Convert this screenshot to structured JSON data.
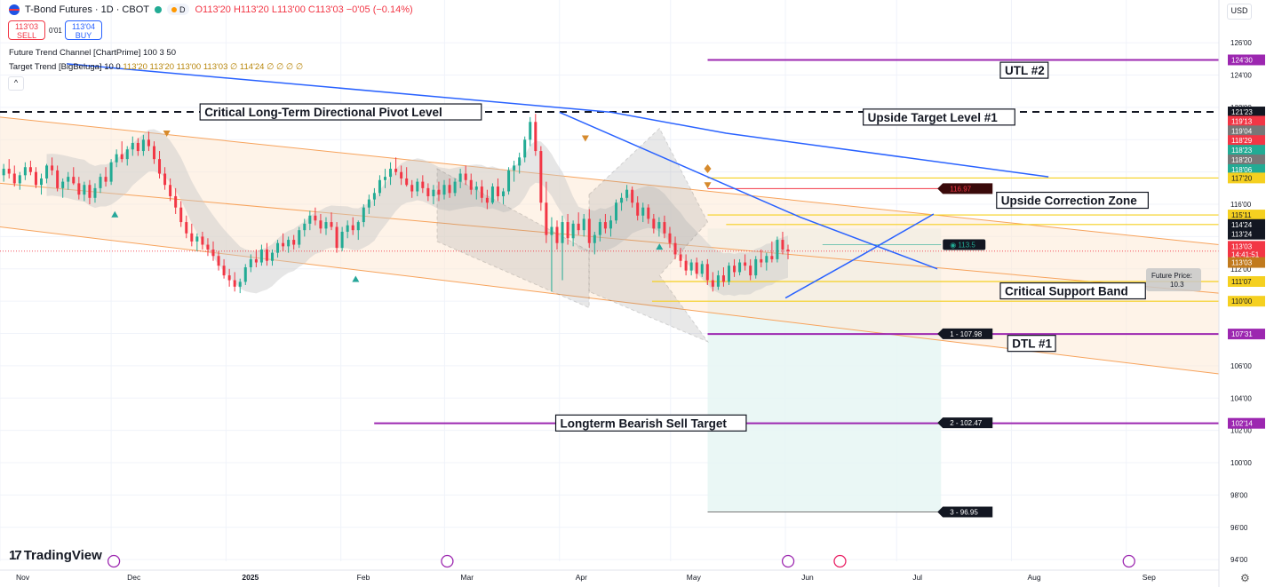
{
  "header": {
    "title": "T-Bond Futures · 1D · CBOT",
    "mode_badge": "D",
    "ohlc": "O113'20 H113'20 L113'00 C113'03 −0'05 (−0.14%)",
    "sell_price": "113'03",
    "sell_label": "SELL",
    "spread": "0'01",
    "buy_price": "113'04",
    "buy_label": "BUY",
    "indicator1": "Future Trend Channel [ChartPrime] 100 3 50",
    "indicator2_name": "Target Trend [BigBeluga] 10 0",
    "indicator2_values": "113'20  113'20  113'00  113'03  ∅  114'24  ∅  ∅  ∅  ∅",
    "currency": "USD",
    "collapse": "^"
  },
  "branding": {
    "logo": "TradingView",
    "logo_mark": "17"
  },
  "colors": {
    "bull": "#22ab94",
    "bear": "#f23645",
    "trend_blue": "#2962ff",
    "purple": "#9c27b0",
    "yellow": "#f5d020",
    "channel": "#f7a35c",
    "cloud": "#c8c8c8",
    "teal_zone": "#e6f6f3"
  },
  "chart_data": {
    "type": "candlestick",
    "xlabel": "",
    "ylabel": "",
    "y_range": [
      93.9,
      127.0
    ],
    "y_ticks": [
      "126'00",
      "124'00",
      "122'00",
      "120'00",
      "118'00",
      "116'00",
      "114'00",
      "112'00",
      "110'00",
      "108'00",
      "106'00",
      "104'00",
      "102'00",
      "100'00",
      "98'00",
      "96'00",
      "94'00"
    ],
    "y_tick_values": [
      126,
      124,
      122,
      120,
      118,
      116,
      114,
      112,
      110,
      108,
      106,
      104,
      102,
      100,
      98,
      96,
      94
    ],
    "x_range": [
      0,
      329
    ],
    "x_ticks": [
      {
        "label": "Nov",
        "x": 0
      },
      {
        "label": "Dec",
        "x": 30
      },
      {
        "label": "2025",
        "x": 61
      },
      {
        "label": "Feb",
        "x": 92
      },
      {
        "label": "Mar",
        "x": 120
      },
      {
        "label": "Apr",
        "x": 151
      },
      {
        "label": "May",
        "x": 181
      },
      {
        "label": "Jun",
        "x": 212
      },
      {
        "label": "Jul",
        "x": 242
      },
      {
        "label": "Aug",
        "x": 273
      },
      {
        "label": "Sep",
        "x": 304
      }
    ],
    "candles_start_x": 1,
    "candles_step": 1.45,
    "ohlc": [
      [
        117.8,
        118.5,
        117.4,
        118.2
      ],
      [
        118.2,
        118.8,
        117.6,
        117.9
      ],
      [
        117.9,
        118.4,
        117.1,
        117.3
      ],
      [
        117.3,
        118.0,
        116.9,
        117.8
      ],
      [
        117.8,
        118.6,
        117.5,
        118.3
      ],
      [
        118.3,
        118.7,
        117.8,
        118.0
      ],
      [
        118.0,
        118.3,
        117.0,
        117.2
      ],
      [
        117.2,
        117.9,
        116.6,
        117.6
      ],
      [
        117.6,
        118.5,
        117.3,
        118.4
      ],
      [
        118.4,
        118.9,
        117.8,
        118.1
      ],
      [
        118.1,
        118.4,
        116.8,
        117.0
      ],
      [
        117.0,
        117.6,
        116.4,
        117.4
      ],
      [
        117.4,
        118.0,
        116.9,
        117.7
      ],
      [
        117.7,
        118.3,
        117.2,
        117.3
      ],
      [
        117.3,
        117.7,
        116.3,
        116.6
      ],
      [
        116.6,
        117.4,
        116.2,
        117.2
      ],
      [
        117.2,
        117.5,
        116.0,
        116.4
      ],
      [
        116.4,
        117.3,
        116.1,
        117.0
      ],
      [
        117.0,
        117.9,
        116.7,
        117.7
      ],
      [
        117.7,
        118.3,
        117.1,
        117.4
      ],
      [
        117.4,
        118.8,
        117.2,
        118.6
      ],
      [
        118.6,
        119.4,
        118.3,
        119.1
      ],
      [
        119.1,
        119.9,
        118.6,
        118.8
      ],
      [
        118.8,
        119.6,
        118.4,
        119.4
      ],
      [
        119.4,
        120.2,
        119.0,
        119.8
      ],
      [
        119.8,
        120.1,
        119.0,
        119.3
      ],
      [
        119.3,
        120.3,
        119.0,
        120.0
      ],
      [
        120.0,
        120.5,
        119.3,
        119.6
      ],
      [
        119.6,
        119.9,
        118.5,
        118.8
      ],
      [
        118.8,
        119.3,
        117.6,
        117.9
      ],
      [
        117.9,
        118.3,
        116.9,
        117.2
      ],
      [
        117.2,
        117.6,
        116.2,
        116.5
      ],
      [
        116.5,
        117.0,
        115.4,
        115.8
      ],
      [
        115.8,
        116.2,
        114.6,
        114.9
      ],
      [
        114.9,
        115.3,
        113.9,
        114.2
      ],
      [
        114.2,
        114.8,
        113.4,
        113.7
      ],
      [
        113.7,
        114.2,
        113.1,
        114.0
      ],
      [
        114.0,
        114.3,
        113.2,
        113.5
      ],
      [
        113.5,
        113.9,
        112.8,
        113.2
      ],
      [
        113.2,
        113.7,
        112.5,
        112.8
      ],
      [
        112.8,
        113.1,
        111.9,
        112.2
      ],
      [
        112.2,
        112.6,
        111.4,
        111.6
      ],
      [
        111.6,
        112.0,
        110.9,
        111.3
      ],
      [
        111.3,
        111.8,
        110.6,
        110.9
      ],
      [
        110.9,
        111.4,
        110.5,
        111.2
      ],
      [
        111.2,
        112.3,
        111.0,
        112.1
      ],
      [
        112.1,
        112.9,
        111.8,
        112.6
      ],
      [
        112.6,
        113.2,
        112.1,
        112.4
      ],
      [
        112.4,
        113.5,
        112.2,
        113.2
      ],
      [
        113.2,
        113.6,
        112.2,
        112.5
      ],
      [
        112.5,
        113.2,
        112.2,
        113.0
      ],
      [
        113.0,
        113.8,
        112.7,
        113.6
      ],
      [
        113.6,
        114.2,
        113.1,
        113.4
      ],
      [
        113.4,
        114.0,
        113.0,
        113.8
      ],
      [
        113.8,
        114.1,
        113.2,
        113.5
      ],
      [
        113.5,
        114.6,
        113.3,
        114.4
      ],
      [
        114.4,
        115.1,
        114.0,
        114.8
      ],
      [
        114.8,
        115.6,
        114.4,
        115.3
      ],
      [
        115.3,
        115.8,
        114.7,
        115.0
      ],
      [
        115.0,
        115.4,
        114.2,
        114.5
      ],
      [
        114.5,
        115.2,
        114.1,
        114.9
      ],
      [
        114.9,
        115.5,
        114.4,
        114.6
      ],
      [
        114.6,
        114.9,
        113.0,
        113.3
      ],
      [
        113.3,
        114.6,
        113.1,
        114.3
      ],
      [
        114.3,
        115.0,
        113.9,
        114.7
      ],
      [
        114.7,
        115.2,
        114.1,
        114.4
      ],
      [
        114.4,
        115.0,
        113.8,
        114.9
      ],
      [
        114.9,
        116.0,
        114.6,
        115.8
      ],
      [
        115.8,
        116.6,
        115.4,
        116.3
      ],
      [
        116.3,
        117.0,
        115.9,
        116.7
      ],
      [
        116.7,
        117.8,
        116.5,
        117.5
      ],
      [
        117.5,
        118.2,
        117.0,
        117.7
      ],
      [
        117.7,
        118.6,
        117.2,
        118.2
      ],
      [
        118.2,
        118.9,
        117.8,
        118.0
      ],
      [
        118.0,
        118.4,
        117.2,
        117.6
      ],
      [
        117.6,
        118.3,
        117.1,
        117.2
      ],
      [
        117.2,
        117.5,
        116.4,
        116.8
      ],
      [
        116.8,
        117.6,
        116.5,
        117.4
      ],
      [
        117.4,
        117.8,
        116.7,
        117.0
      ],
      [
        117.0,
        117.3,
        116.2,
        116.5
      ],
      [
        116.5,
        117.2,
        116.0,
        116.9
      ],
      [
        116.9,
        117.4,
        116.2,
        116.6
      ],
      [
        116.6,
        117.5,
        116.3,
        117.2
      ],
      [
        117.2,
        117.6,
        116.4,
        116.7
      ],
      [
        116.7,
        117.6,
        116.5,
        117.4
      ],
      [
        117.4,
        118.2,
        117.0,
        117.9
      ],
      [
        117.9,
        118.4,
        117.2,
        117.5
      ],
      [
        117.5,
        117.9,
        116.6,
        116.9
      ],
      [
        116.9,
        117.4,
        116.3,
        117.1
      ],
      [
        117.1,
        117.5,
        116.1,
        116.4
      ],
      [
        116.4,
        116.9,
        115.7,
        116.1
      ],
      [
        116.1,
        117.3,
        116.0,
        117.1
      ],
      [
        117.1,
        117.6,
        116.2,
        116.5
      ],
      [
        116.5,
        117.0,
        116.0,
        116.8
      ],
      [
        116.8,
        118.3,
        116.6,
        118.1
      ],
      [
        118.1,
        118.7,
        117.4,
        118.4
      ],
      [
        118.4,
        119.2,
        117.9,
        118.9
      ],
      [
        118.9,
        120.2,
        118.6,
        120.0
      ],
      [
        120.0,
        121.4,
        119.6,
        121.1
      ],
      [
        121.1,
        121.6,
        119.0,
        119.3
      ],
      [
        119.3,
        119.6,
        115.6,
        116.1
      ],
      [
        116.1,
        117.4,
        113.6,
        114.1
      ],
      [
        114.1,
        115.2,
        110.6,
        114.6
      ],
      [
        114.6,
        115.0,
        113.2,
        113.6
      ],
      [
        113.6,
        115.3,
        111.3,
        114.9
      ],
      [
        114.9,
        115.4,
        113.5,
        113.9
      ],
      [
        113.9,
        115.0,
        113.4,
        114.8
      ],
      [
        114.8,
        115.5,
        114.1,
        114.4
      ],
      [
        114.4,
        115.4,
        114.0,
        115.1
      ],
      [
        115.1,
        115.7,
        113.3,
        113.6
      ],
      [
        113.6,
        114.3,
        112.9,
        114.1
      ],
      [
        114.1,
        115.1,
        113.7,
        114.9
      ],
      [
        114.9,
        115.4,
        114.2,
        114.5
      ],
      [
        114.5,
        115.3,
        114.0,
        115.0
      ],
      [
        115.0,
        116.3,
        114.8,
        116.1
      ],
      [
        116.1,
        116.7,
        115.6,
        116.4
      ],
      [
        116.4,
        117.2,
        116.2,
        116.9
      ],
      [
        116.9,
        117.1,
        115.8,
        116.1
      ],
      [
        116.1,
        116.5,
        115.0,
        115.3
      ],
      [
        115.3,
        116.1,
        114.9,
        115.8
      ],
      [
        115.8,
        116.0,
        114.8,
        115.1
      ],
      [
        115.1,
        115.4,
        114.2,
        114.5
      ],
      [
        114.5,
        115.2,
        114.0,
        114.9
      ],
      [
        114.9,
        115.3,
        113.9,
        114.2
      ],
      [
        114.2,
        114.6,
        113.3,
        113.6
      ],
      [
        113.6,
        114.0,
        112.6,
        112.9
      ],
      [
        112.9,
        113.3,
        112.1,
        112.5
      ],
      [
        112.5,
        112.9,
        111.6,
        111.9
      ],
      [
        111.9,
        112.6,
        111.6,
        112.4
      ],
      [
        112.4,
        112.7,
        111.4,
        111.7
      ],
      [
        111.7,
        112.5,
        111.5,
        112.3
      ],
      [
        112.3,
        112.6,
        111.0,
        111.3
      ],
      [
        111.3,
        111.8,
        110.6,
        110.9
      ],
      [
        110.9,
        111.9,
        110.7,
        111.6
      ],
      [
        111.6,
        112.1,
        110.9,
        111.2
      ],
      [
        111.2,
        112.4,
        111.0,
        112.2
      ],
      [
        112.2,
        112.6,
        111.5,
        111.8
      ],
      [
        111.8,
        112.6,
        111.6,
        112.4
      ],
      [
        112.4,
        112.9,
        111.9,
        112.2
      ],
      [
        112.2,
        112.6,
        111.3,
        111.6
      ],
      [
        111.6,
        112.8,
        111.4,
        112.6
      ],
      [
        112.6,
        113.2,
        112.1,
        112.4
      ],
      [
        112.4,
        113.0,
        111.9,
        112.8
      ],
      [
        112.8,
        113.7,
        112.4,
        112.6
      ],
      [
        112.6,
        114.0,
        112.4,
        113.8
      ],
      [
        113.8,
        114.3,
        112.9,
        113.2
      ],
      [
        113.2,
        113.5,
        112.6,
        113.1
      ]
    ],
    "channel": {
      "upper": [
        [
          0,
          121.4
        ],
        [
          329,
          113.5
        ]
      ],
      "mid": [
        [
          0,
          117.3
        ],
        [
          329,
          110.5
        ]
      ],
      "lower": [
        [
          0,
          114.6
        ],
        [
          329,
          105.5
        ]
      ]
    },
    "trend_lines": [
      {
        "points": [
          [
            18,
            124.7
          ],
          [
            165,
            121.7
          ],
          [
            196,
            120.4
          ],
          [
            283,
            117.7
          ]
        ]
      },
      {
        "points": [
          [
            151,
            121.7
          ],
          [
            216,
            115.2
          ],
          [
            253,
            112.0
          ]
        ]
      },
      {
        "points": [
          [
            212,
            110.2
          ],
          [
            233,
            112.9
          ],
          [
            252,
            115.4
          ]
        ]
      }
    ],
    "resistance_line": {
      "y": 121.72,
      "x0": 0,
      "x1": 329,
      "dashed": true
    },
    "horizontal_levels": [
      {
        "y": 124.94,
        "x0": 191,
        "x1": 329,
        "color": "purple"
      },
      {
        "y": 117.63,
        "x0": 191,
        "x1": 329,
        "color": "yellow"
      },
      {
        "y": 115.34,
        "x0": 191,
        "x1": 329,
        "color": "yellow"
      },
      {
        "y": 114.75,
        "x0": 196,
        "x1": 329,
        "color": "yellow"
      },
      {
        "y": 111.22,
        "x0": 176,
        "x1": 329,
        "color": "yellow"
      },
      {
        "y": 110.0,
        "x0": 176,
        "x1": 329,
        "color": "yellow"
      },
      {
        "y": 107.97,
        "x0": 191,
        "x1": 329,
        "color": "purple"
      },
      {
        "y": 102.44,
        "x0": 101,
        "x1": 329,
        "color": "purple"
      }
    ],
    "target_levels": [
      {
        "label": "116.97",
        "y": 116.97
      },
      {
        "label": "1 - 107.98",
        "y": 107.98
      },
      {
        "label": "2 - 102.47",
        "y": 102.47
      },
      {
        "label": "3 - 96.95",
        "y": 96.95
      }
    ],
    "current_marker": {
      "label": "113.5",
      "y": 113.5
    },
    "future_price_box": {
      "label": "Future Price:",
      "value": "10.3"
    },
    "annotations": [
      {
        "text": "Critical Long-Term Directional Pivot Level",
        "x": 54,
        "y": 121.72
      },
      {
        "text": "UTL #2",
        "x": 270,
        "y": 124.3
      },
      {
        "text": "Upside Target Level #1",
        "x": 233,
        "y": 121.4
      },
      {
        "text": "Upside Correction Zone",
        "x": 269,
        "y": 116.25
      },
      {
        "text": "Critical Support Band",
        "x": 270,
        "y": 110.64
      },
      {
        "text": "DTL #1",
        "x": 272,
        "y": 107.39
      },
      {
        "text": "Longterm Bearish Sell Target",
        "x": 150,
        "y": 102.46
      }
    ],
    "price_tags": [
      {
        "text": "124'30",
        "y": 124.94,
        "color": "#9c27b0"
      },
      {
        "text": "121'23",
        "y": 121.72,
        "color": "#131722"
      },
      {
        "text": "119'13",
        "y": 121.15,
        "color": "#f23645"
      },
      {
        "text": "119'04",
        "y": 120.55,
        "color": "#777777"
      },
      {
        "text": "118'29",
        "y": 119.95,
        "color": "#f23645"
      },
      {
        "text": "118'23",
        "y": 119.35,
        "color": "#22ab94"
      },
      {
        "text": "118'20",
        "y": 118.75,
        "color": "#777777"
      },
      {
        "text": "118'06",
        "y": 118.15,
        "color": "#22ab94"
      },
      {
        "text": "117'20",
        "y": 117.63,
        "color": "#f5d020"
      },
      {
        "text": "115'11",
        "y": 115.34,
        "color": "#f5d020"
      },
      {
        "text": "114'24",
        "y": 114.75,
        "color": "#131722"
      },
      {
        "text": "113'24",
        "y": 114.15,
        "color": "#131722"
      },
      {
        "text": "113'03",
        "y": 113.4,
        "color": "#f23645"
      },
      {
        "text": "14:41:51",
        "y": 112.9,
        "color": "#f23645"
      },
      {
        "text": "113'03",
        "y": 112.4,
        "color": "#c17a1d"
      },
      {
        "text": "111'07",
        "y": 111.22,
        "color": "#f5d020"
      },
      {
        "text": "110'00",
        "y": 110.0,
        "color": "#f5d020"
      },
      {
        "text": "107'31",
        "y": 107.97,
        "color": "#9c27b0"
      },
      {
        "text": "102'14",
        "y": 102.44,
        "color": "#9c27b0"
      }
    ]
  }
}
